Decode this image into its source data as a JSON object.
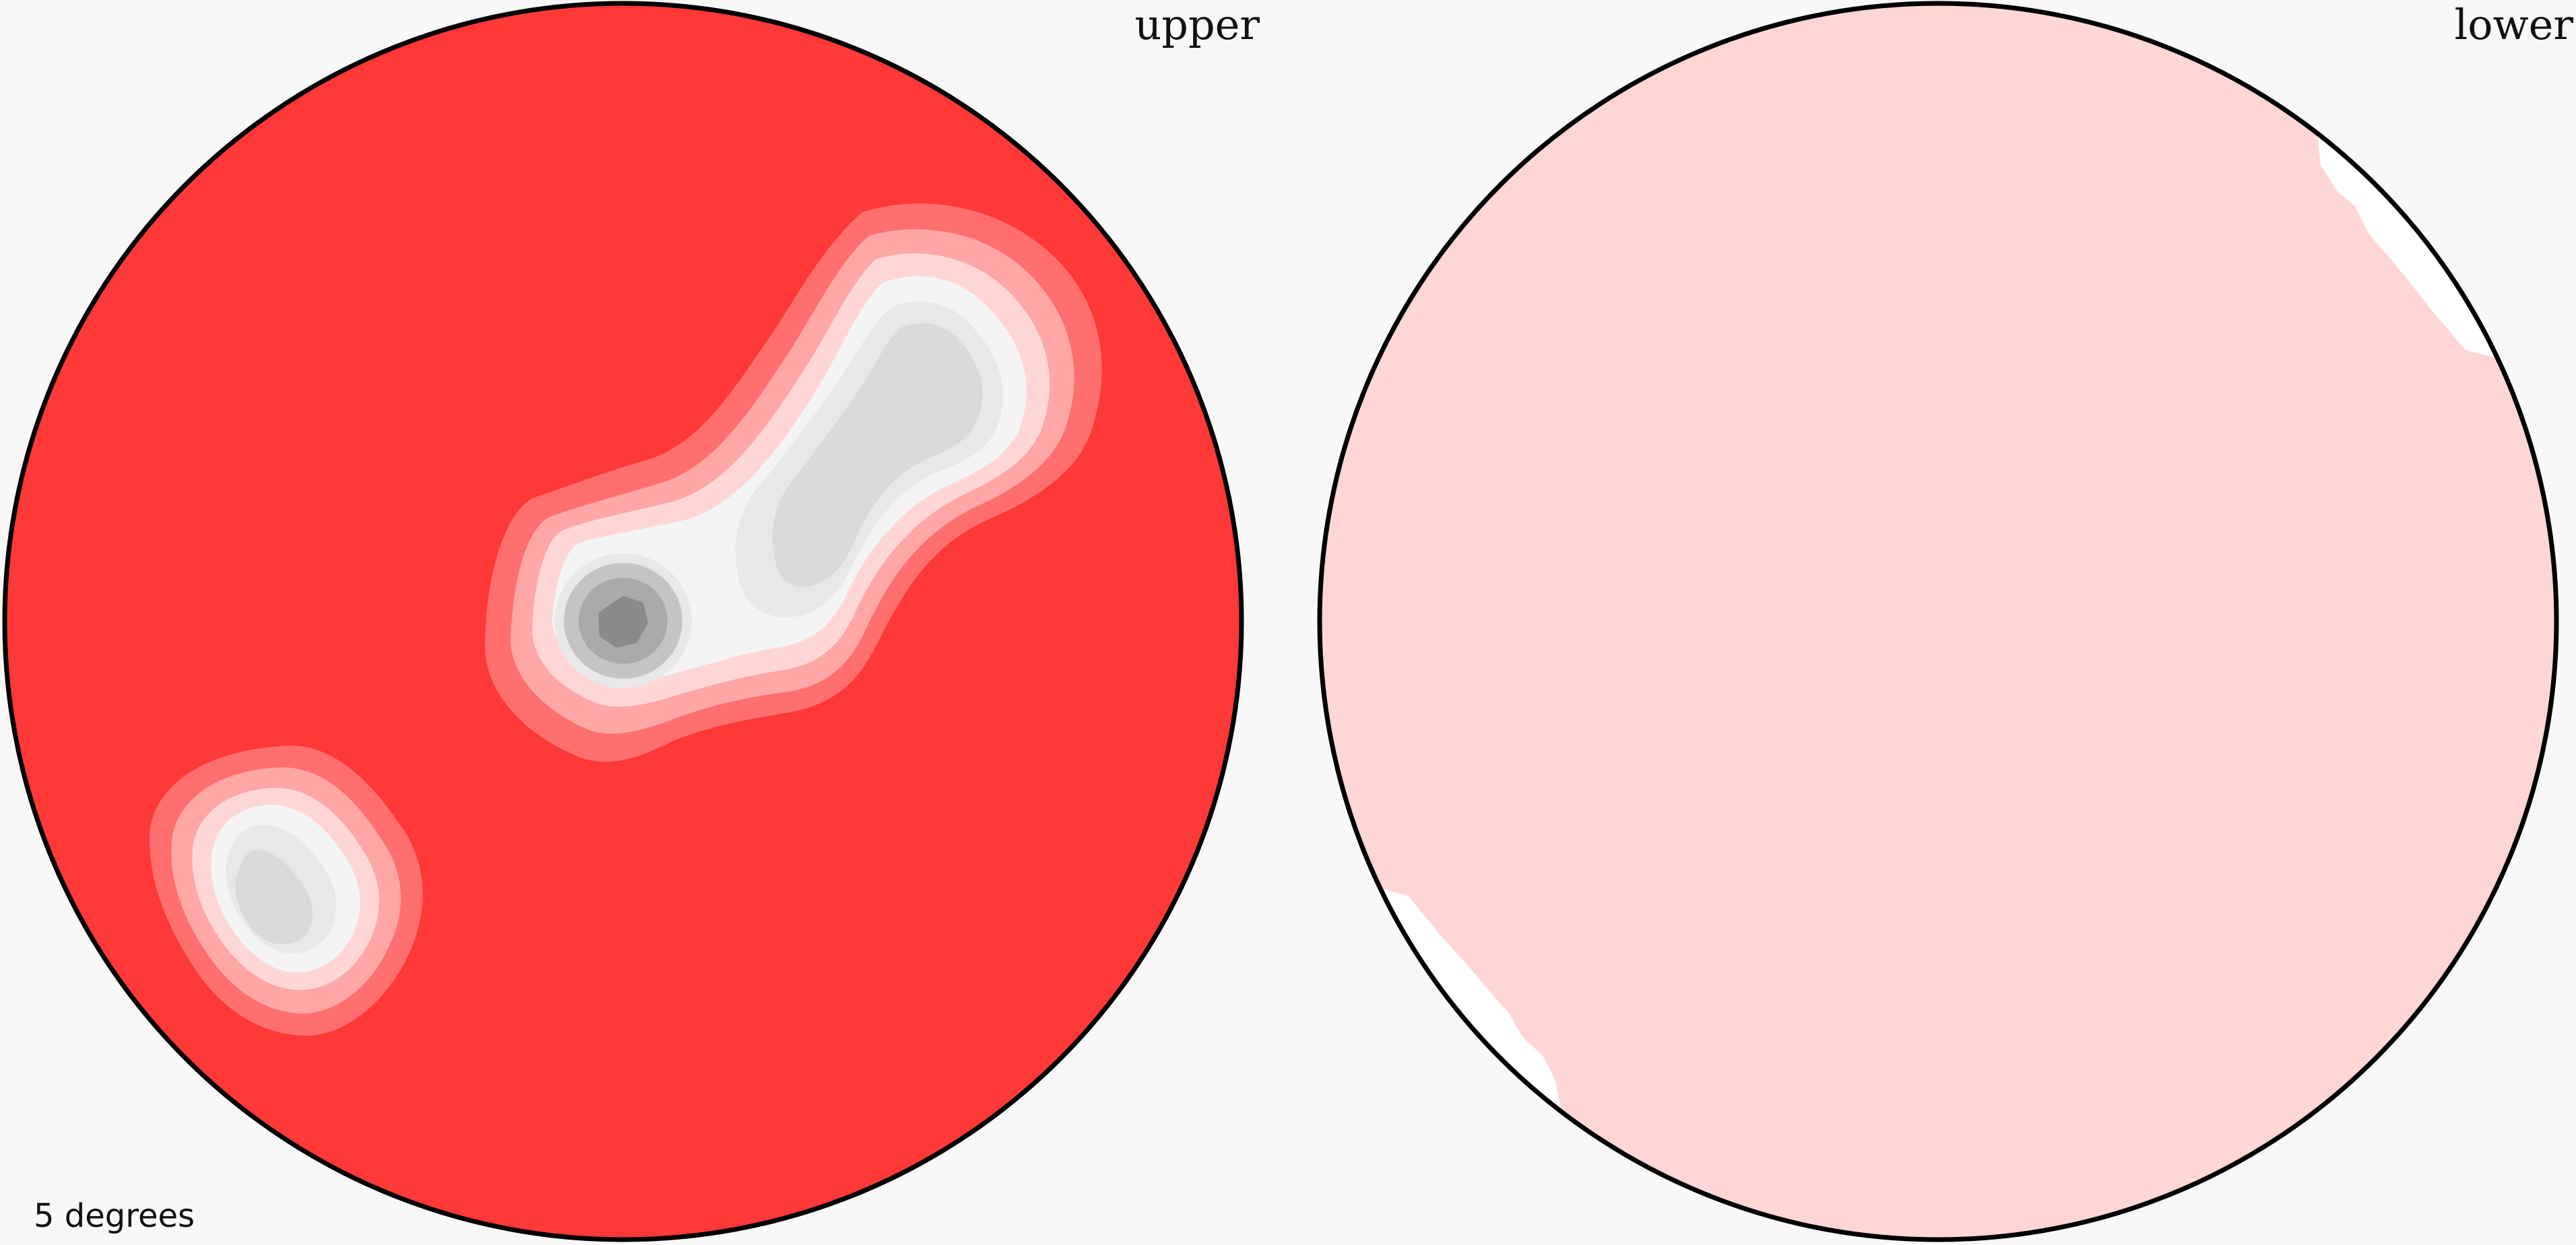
{
  "panels": {
    "upper": {
      "label": "upper",
      "colors": {
        "background": "#ff3838",
        "band_1": "#ff6f70",
        "band_2": "#ffa6a6",
        "band_3": "#ffd6d6",
        "band_4": "#f4f4f4",
        "band_5": "#e8e8e8",
        "band_6": "#dadada",
        "band_7": "#c4c4c4",
        "band_8": "#aaaaaa",
        "band_9": "#8a8a8a",
        "outline": "#000000"
      }
    },
    "lower": {
      "label": "lower",
      "colors": {
        "fill": "#ffd6d6",
        "white_patch": "#ffffff",
        "outline": "#000000"
      }
    }
  },
  "scale": {
    "label": "5 degrees"
  },
  "colors": {
    "page_background": "#f8f8f8"
  }
}
